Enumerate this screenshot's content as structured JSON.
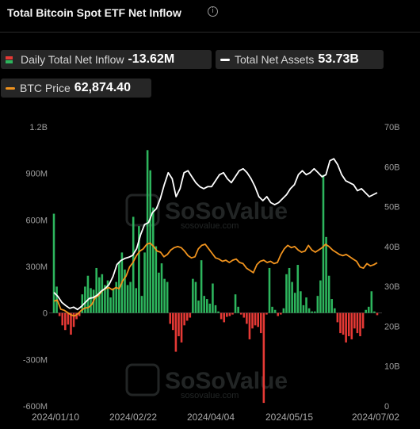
{
  "header": {
    "title": "Total Bitcoin Spot ETF Net Inflow",
    "info_icon": "info-circle-icon"
  },
  "legend": {
    "inflow": {
      "label": "Daily Total Net Inflow",
      "value": "-13.62M",
      "colors": [
        "#2db55d",
        "#e53935"
      ]
    },
    "assets": {
      "label": "Total Net Assets",
      "value": "53.73B",
      "color": "#ffffff"
    },
    "btc": {
      "label": "BTC Price",
      "value": "62,874.40",
      "color": "#f0931e"
    }
  },
  "watermark": {
    "brand": "SoSoValue",
    "url": "sosovalue.com"
  },
  "chart_data": {
    "type": "bar+line",
    "x_ticks": [
      "2024/01/10",
      "2024/02/22",
      "2024/04/04",
      "2024/05/15",
      "2024/07/02"
    ],
    "left_axis": {
      "ticks": [
        "1.2B",
        "900M",
        "600M",
        "300M",
        "0",
        "-300M",
        "-600M"
      ],
      "range": [
        -600,
        1200
      ],
      "unit": "M"
    },
    "right_axis": {
      "ticks": [
        "70B",
        "60B",
        "50B",
        "40B",
        "30B",
        "20B",
        "10B",
        "0"
      ],
      "range": [
        0,
        70
      ],
      "unit": "B"
    },
    "series": [
      {
        "name": "Daily Total Net Inflow",
        "kind": "bar",
        "positive_color": "#2db55d",
        "negative_color": "#e53935",
        "values": [
          640,
          170,
          -20,
          -80,
          -110,
          -75,
          -140,
          -90,
          -40,
          -20,
          120,
          170,
          240,
          160,
          150,
          290,
          230,
          250,
          180,
          210,
          100,
          160,
          200,
          330,
          390,
          280,
          180,
          200,
          620,
          160,
          560,
          110,
          390,
          1050,
          920,
          680,
          430,
          260,
          320,
          220,
          200,
          -70,
          -110,
          -250,
          -150,
          -190,
          -80,
          -50,
          -30,
          220,
          200,
          80,
          340,
          110,
          90,
          60,
          190,
          50,
          10,
          -40,
          -60,
          -25,
          -20,
          -10,
          120,
          40,
          -10,
          -30,
          -70,
          -170,
          -100,
          -80,
          -90,
          -130,
          -580,
          -10,
          290,
          40,
          20,
          -20,
          -10,
          30,
          250,
          290,
          200,
          130,
          310,
          140,
          50,
          100,
          30,
          10,
          10,
          110,
          210,
          890,
          490,
          240,
          90,
          30,
          -60,
          -130,
          -140,
          -190,
          -150,
          -170,
          -100,
          -130,
          -150,
          -100,
          20,
          40,
          140,
          10,
          -14
        ]
      },
      {
        "name": "Total Net Assets",
        "kind": "line",
        "axis": "right",
        "color": "#ffffff",
        "values": [
          28.5,
          27.5,
          26.0,
          25.2,
          24.5,
          24.8,
          24.2,
          25.0,
          26.0,
          27.0,
          27.2,
          27.8,
          28.8,
          29.5,
          30.5,
          32.5,
          35.5,
          36.5,
          37.0,
          37.3,
          37.8,
          39.5,
          43.0,
          45.5,
          46.0,
          48.5,
          49.5,
          52.0,
          55.5,
          58.5,
          57.0,
          52.5,
          54.5,
          58.5,
          59.0,
          57.5,
          56.0,
          55.0,
          54.5,
          55.0,
          55.0,
          56.5,
          58.0,
          58.5,
          57.0,
          56.0,
          57.5,
          59.0,
          59.5,
          58.5,
          57.0,
          55.0,
          52.5,
          51.5,
          52.5,
          51.0,
          50.5,
          51.0,
          52.0,
          53.0,
          54.5,
          55.5,
          58.0,
          59.0,
          58.0,
          58.5,
          59.5,
          58.5,
          57.5,
          58.0,
          61.5,
          62.0,
          60.5,
          58.0,
          56.5,
          56.0,
          55.5,
          54.0,
          54.5,
          53.5,
          52.5,
          53.0,
          53.5
        ],
        "last": "53.73"
      },
      {
        "name": "BTC Price",
        "kind": "line",
        "axis": "right",
        "color": "#f0931e",
        "values": [
          46000,
          46500,
          42500,
          42000,
          41000,
          40000,
          39500,
          40500,
          42000,
          43000,
          43200,
          44500,
          47500,
          48500,
          50500,
          51500,
          52000,
          51000,
          52000,
          51500,
          55000,
          57000,
          61000,
          63000,
          66000,
          68000,
          69000,
          71000,
          71500,
          70000,
          68000,
          67500,
          65500,
          66500,
          68500,
          69500,
          70000,
          69500,
          68000,
          66000,
          65000,
          65500,
          69000,
          70500,
          71000,
          69000,
          67000,
          65000,
          64500,
          63500,
          64000,
          63000,
          64000,
          64500,
          63000,
          62500,
          60500,
          59500,
          58500,
          62000,
          63500,
          64000,
          63000,
          63500,
          62500,
          63000,
          66500,
          69000,
          70500,
          69500,
          70000,
          68500,
          67500,
          68000,
          70500,
          68500,
          67500,
          68500,
          69500,
          71000,
          70000,
          68500,
          67500,
          66500,
          66000,
          66500,
          65500,
          64500,
          63500,
          61000,
          60500,
          62500,
          61500,
          62000,
          62874.4
        ]
      }
    ]
  }
}
